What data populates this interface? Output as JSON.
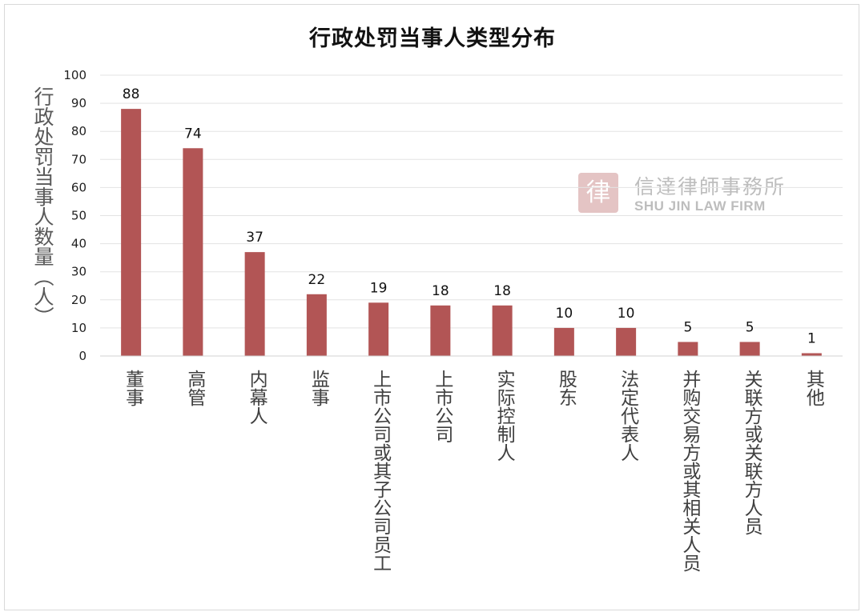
{
  "chart_data": {
    "type": "bar",
    "title": "行政处罚当事人类型分布",
    "ylabel": "行政处罚当事人数量（人）",
    "xlabel": "",
    "ylim": [
      0,
      100
    ],
    "yticks": [
      0,
      10,
      20,
      30,
      40,
      50,
      60,
      70,
      80,
      90,
      100
    ],
    "grid": true,
    "legend": "none",
    "bar_color": "#b25555",
    "categories": [
      "董事",
      "高管",
      "内幕人",
      "监事",
      "上市公司或其子公司员工",
      "上市公司",
      "实际控制人",
      "股东",
      "法定代表人",
      "并购交易方或其相关人员",
      "关联方或关联方人员",
      "其他"
    ],
    "values": [
      88,
      74,
      37,
      22,
      19,
      18,
      18,
      10,
      10,
      5,
      5,
      1
    ],
    "data_labels": [
      "88",
      "74",
      "37",
      "22",
      "19",
      "18",
      "18",
      "10",
      "10",
      "5",
      "5",
      "1"
    ]
  },
  "watermark": {
    "seal_text": "律",
    "name_cn": "信達律師事務所",
    "name_en": "SHU JIN LAW FIRM"
  }
}
